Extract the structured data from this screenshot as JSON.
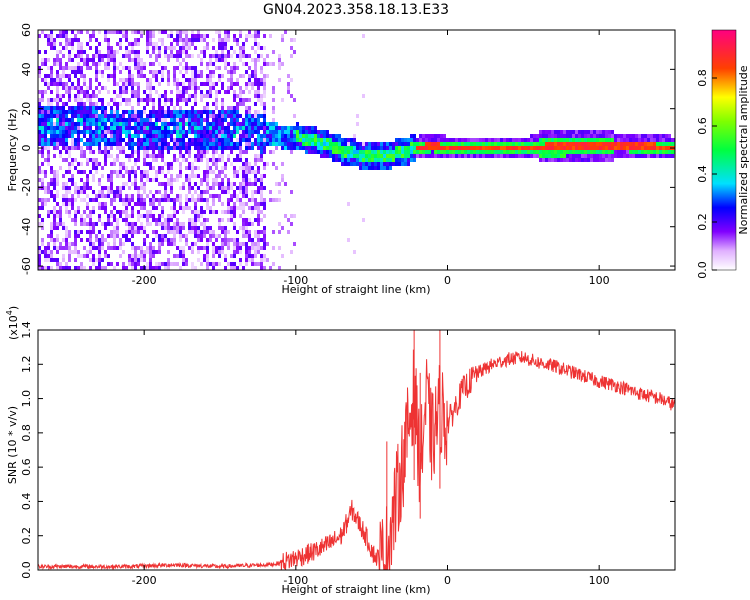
{
  "title": "GN04.2023.358.18.13.E33",
  "chart_data": [
    {
      "type": "heatmap",
      "xlabel": "Height of straight line (km)",
      "ylabel": "Frequency (Hz)",
      "xlim": [
        -270,
        150
      ],
      "ylim": [
        -62,
        60
      ],
      "xticks": [
        -200,
        -100,
        0,
        100
      ],
      "yticks": [
        -60,
        -40,
        -20,
        0,
        20,
        40,
        60
      ],
      "colorbar": {
        "label": "Normalized spectral amplitude",
        "range": [
          0,
          1
        ],
        "ticks": [
          "0.0",
          "0.2",
          "0.4",
          "0.6",
          "0.8"
        ],
        "tick_values": [
          0,
          0.2,
          0.4,
          0.6,
          0.8
        ]
      },
      "ridge": {
        "x": [
          -270,
          -240,
          -210,
          -180,
          -150,
          -125,
          -110,
          -95,
          -80,
          -70,
          -60,
          -50,
          -40,
          -30,
          -20,
          -10,
          0,
          20,
          50,
          80,
          100,
          120,
          150
        ],
        "y": [
          12,
          11,
          10,
          9,
          9,
          8,
          6,
          5,
          2,
          -1,
          -3,
          -4,
          -4,
          -2,
          0,
          1,
          0,
          0,
          0,
          1,
          1,
          1,
          0
        ]
      }
    },
    {
      "type": "line",
      "xlabel": "Height of straight line (km)",
      "ylabel": "SNR (10 * v/v)",
      "multiplier": "(x10",
      "multiplier_exp": "4",
      "multiplier_close": ")",
      "xlim": [
        -270,
        150
      ],
      "ylim": [
        0,
        1.4
      ],
      "xticks": [
        -200,
        -100,
        0,
        100
      ],
      "yticks": [
        "0.0",
        "0.2",
        "0.4",
        "0.6",
        "0.8",
        "1.0",
        "1.2",
        "1.4"
      ],
      "ytick_values": [
        0,
        0.2,
        0.4,
        0.6,
        0.8,
        1.0,
        1.2,
        1.4
      ],
      "color": "#ee3333",
      "series": [
        {
          "x": [
            -270,
            -240,
            -210,
            -180,
            -150,
            -120,
            -110,
            -100,
            -90,
            -80,
            -70,
            -63,
            -55,
            -48,
            -42,
            -38,
            -33,
            -28,
            -22,
            -18,
            -14,
            -10,
            -5,
            0,
            10,
            20,
            30,
            40,
            50,
            60,
            70,
            80,
            90,
            100,
            110,
            120,
            130,
            140,
            150
          ],
          "y": [
            0.02,
            0.02,
            0.02,
            0.03,
            0.02,
            0.03,
            0.04,
            0.07,
            0.1,
            0.14,
            0.2,
            0.35,
            0.22,
            0.08,
            0.05,
            0.2,
            0.45,
            0.7,
            1.05,
            0.6,
            1.0,
            0.75,
            0.95,
            0.85,
            1.05,
            1.15,
            1.2,
            1.23,
            1.24,
            1.21,
            1.19,
            1.16,
            1.13,
            1.1,
            1.08,
            1.05,
            1.02,
            1.0,
            0.96
          ],
          "spikes": [
            {
              "x": -40,
              "y": 0.75
            },
            {
              "x": -22,
              "y": 1.4
            },
            {
              "x": -18,
              "y": 1.15
            },
            {
              "x": -5,
              "y": 1.4
            }
          ]
        }
      ]
    }
  ]
}
